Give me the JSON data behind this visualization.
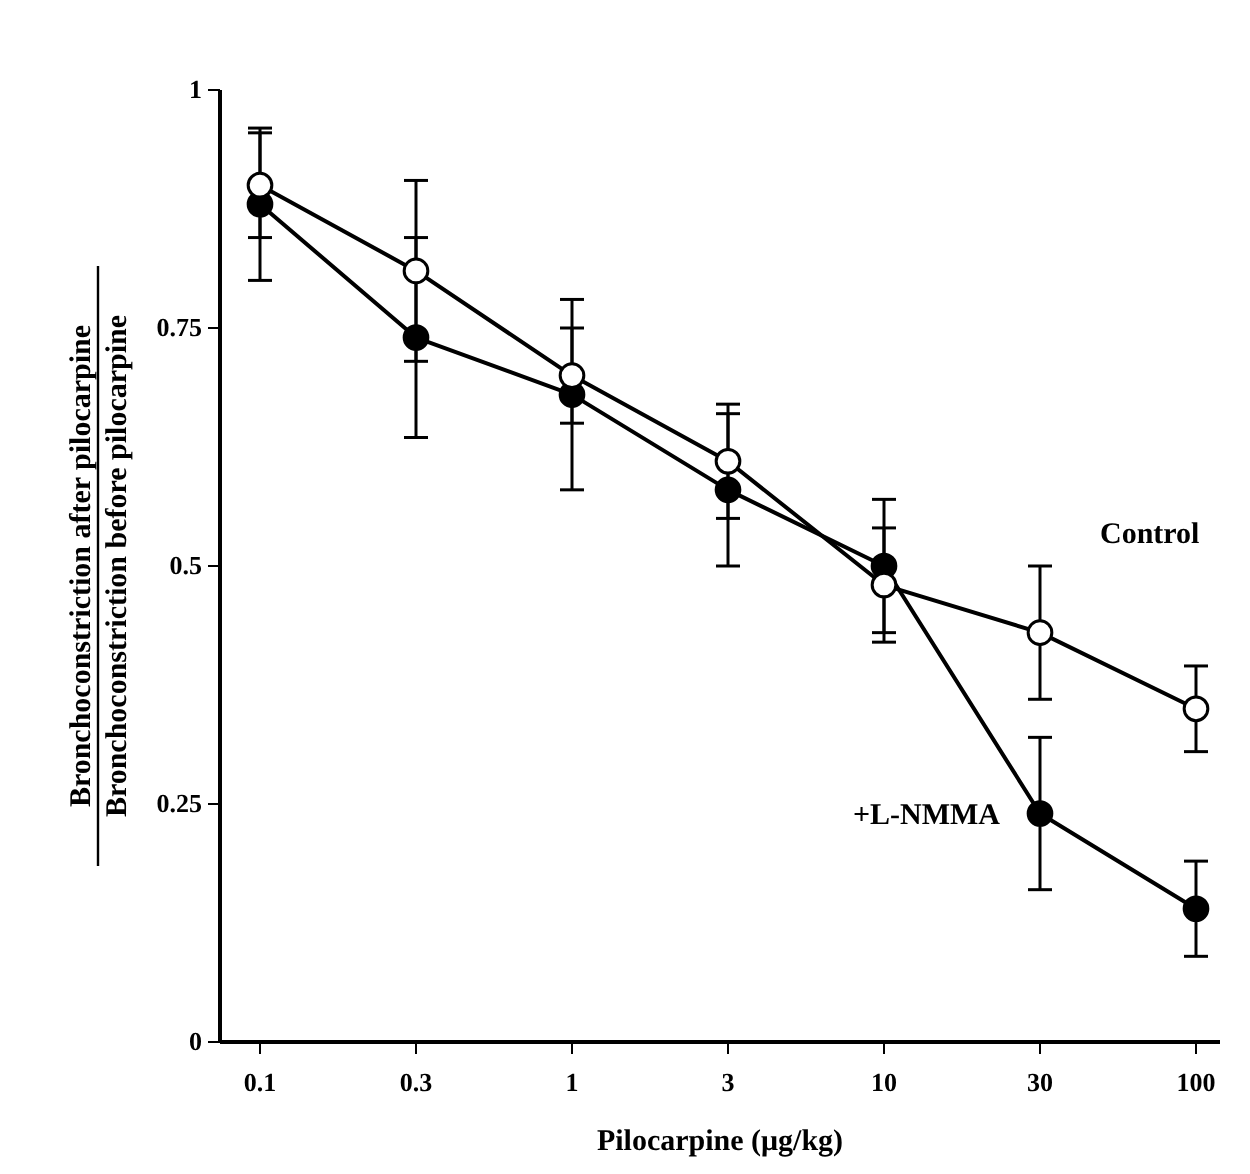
{
  "chart_data": {
    "type": "line",
    "xlabel": "Pilocarpine (μg/kg)",
    "ylabel": "Bronchoconstriction after pilocarpine\nBronchoconstriction before pilocarpine",
    "categories": [
      "0.1",
      "0.3",
      "1",
      "3",
      "10",
      "30",
      "100"
    ],
    "ylim": [
      0,
      1
    ],
    "yticks": [
      0,
      0.25,
      0.5,
      0.75,
      1
    ],
    "marker": "circle",
    "line_style": "solid",
    "grid": false,
    "series": [
      {
        "name": "Control",
        "color": "#000000",
        "values": [
          0.9,
          0.81,
          0.7,
          0.61,
          0.48,
          0.43,
          0.35
        ],
        "errors": [
          0.055,
          0.095,
          0.05,
          0.06,
          0.06,
          0.07,
          0.045
        ]
      },
      {
        "name": "+L-NMMA",
        "color": "#000000",
        "values": [
          0.88,
          0.74,
          0.68,
          0.58,
          0.5,
          0.24,
          0.14
        ],
        "errors": [
          0.08,
          0.105,
          0.1,
          0.08,
          0.07,
          0.08,
          0.05
        ]
      }
    ]
  }
}
